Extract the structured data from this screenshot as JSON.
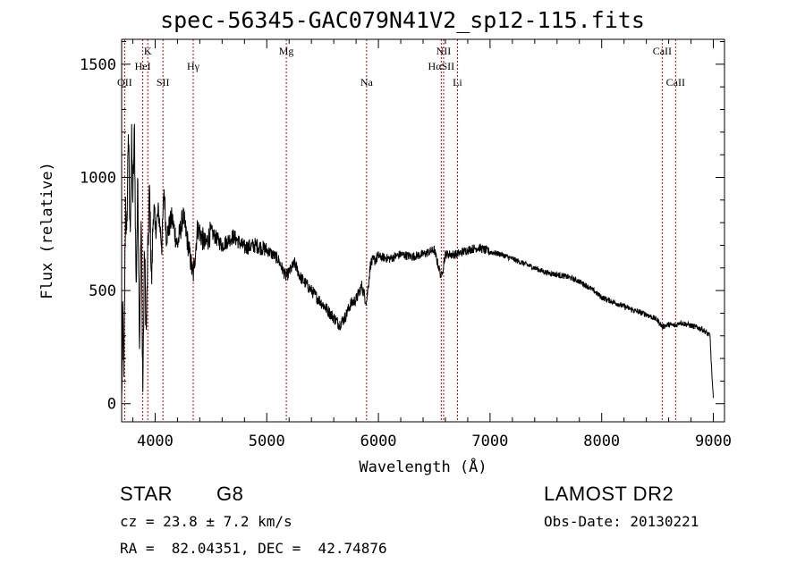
{
  "title": "spec-56345-GAC079N41V2_sp12-115.fits",
  "info": {
    "class": "STAR",
    "subclass": "G8",
    "survey": "LAMOST DR2",
    "cz": "cz = 23.8 ± 7.2 km/s",
    "obs_date": "Obs-Date: 20130221",
    "coords": "RA =  82.04351, DEC =  42.74876"
  },
  "chart_data": {
    "type": "line",
    "title": "spec-56345-GAC079N41V2_sp12-115.fits",
    "xlabel": "Wavelength (Å)",
    "ylabel": "Flux (relative)",
    "xlim": [
      3700,
      9100
    ],
    "ylim": [
      -80,
      1610
    ],
    "x_ticks": [
      4000,
      5000,
      6000,
      7000,
      8000,
      9000
    ],
    "y_ticks": [
      0,
      500,
      1000,
      1500
    ],
    "grid": false,
    "line_color": "#000000",
    "marker_color": "#cc0000",
    "series": [
      {
        "anchors": [
          [
            3700,
            0
          ],
          [
            3710,
            420
          ],
          [
            3720,
            80
          ],
          [
            3735,
            900
          ],
          [
            3745,
            700
          ],
          [
            3760,
            1230
          ],
          [
            3775,
            750
          ],
          [
            3790,
            1150
          ],
          [
            3800,
            900
          ],
          [
            3815,
            1200
          ],
          [
            3830,
            500
          ],
          [
            3845,
            1000
          ],
          [
            3860,
            280
          ],
          [
            3875,
            800
          ],
          [
            3890,
            60
          ],
          [
            3905,
            700
          ],
          [
            3920,
            300
          ],
          [
            3933,
            620
          ],
          [
            3950,
            950
          ],
          [
            3968,
            520
          ],
          [
            3985,
            880
          ],
          [
            4000,
            760
          ],
          [
            4030,
            850
          ],
          [
            4060,
            700
          ],
          [
            4080,
            950
          ],
          [
            4100,
            740
          ],
          [
            4150,
            820
          ],
          [
            4200,
            700
          ],
          [
            4250,
            830
          ],
          [
            4300,
            690
          ],
          [
            4340,
            560
          ],
          [
            4380,
            780
          ],
          [
            4450,
            700
          ],
          [
            4500,
            760
          ],
          [
            4600,
            700
          ],
          [
            4700,
            740
          ],
          [
            4800,
            690
          ],
          [
            4900,
            700
          ],
          [
            5000,
            680
          ],
          [
            5100,
            640
          ],
          [
            5172,
            560
          ],
          [
            5250,
            620
          ],
          [
            5300,
            560
          ],
          [
            5400,
            500
          ],
          [
            5500,
            440
          ],
          [
            5600,
            380
          ],
          [
            5650,
            350
          ],
          [
            5700,
            380
          ],
          [
            5750,
            440
          ],
          [
            5800,
            460
          ],
          [
            5850,
            520
          ],
          [
            5893,
            450
          ],
          [
            5930,
            620
          ],
          [
            6000,
            650
          ],
          [
            6100,
            640
          ],
          [
            6200,
            660
          ],
          [
            6300,
            650
          ],
          [
            6400,
            660
          ],
          [
            6500,
            680
          ],
          [
            6563,
            560
          ],
          [
            6600,
            660
          ],
          [
            6700,
            660
          ],
          [
            6800,
            680
          ],
          [
            6900,
            690
          ],
          [
            7000,
            670
          ],
          [
            7100,
            660
          ],
          [
            7200,
            640
          ],
          [
            7300,
            620
          ],
          [
            7400,
            600
          ],
          [
            7500,
            580
          ],
          [
            7600,
            570
          ],
          [
            7700,
            560
          ],
          [
            7800,
            540
          ],
          [
            7900,
            510
          ],
          [
            8000,
            470
          ],
          [
            8100,
            450
          ],
          [
            8200,
            430
          ],
          [
            8300,
            410
          ],
          [
            8400,
            395
          ],
          [
            8500,
            370
          ],
          [
            8542,
            340
          ],
          [
            8600,
            350
          ],
          [
            8662,
            345
          ],
          [
            8700,
            360
          ],
          [
            8800,
            345
          ],
          [
            8900,
            330
          ],
          [
            8970,
            300
          ],
          [
            8990,
            100
          ],
          [
            9000,
            20
          ]
        ]
      }
    ],
    "markers": [
      {
        "name": "OII",
        "wave": 3727,
        "row": 3
      },
      {
        "name": "K",
        "wave": 3934,
        "row": 1
      },
      {
        "name": "HeI",
        "wave": 3889,
        "row": 2
      },
      {
        "name": "SII",
        "wave": 4070,
        "row": 3
      },
      {
        "name": "Hγ",
        "wave": 4341,
        "row": 2
      },
      {
        "name": "Mg",
        "wave": 5175,
        "row": 1
      },
      {
        "name": "Na",
        "wave": 5894,
        "row": 3
      },
      {
        "name": "NII",
        "wave": 6584,
        "row": 1
      },
      {
        "name": "HαSII",
        "wave": 6563,
        "row": 2
      },
      {
        "name": "Li",
        "wave": 6708,
        "row": 3
      },
      {
        "name": "CaII",
        "wave": 8542,
        "row": 1
      },
      {
        "name": "CaII",
        "wave": 8662,
        "row": 3
      }
    ]
  }
}
